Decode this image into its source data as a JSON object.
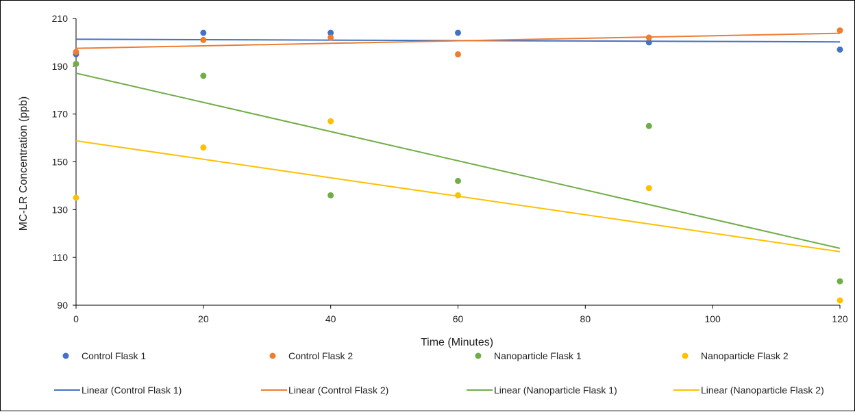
{
  "chart_data": {
    "type": "scatter",
    "title": "",
    "xlabel": "Time (Minutes)",
    "ylabel": "MC-LR Concentration (ppb)",
    "xlim": [
      0,
      120
    ],
    "ylim": [
      90,
      210
    ],
    "x_ticks": [
      "0",
      "20",
      "40",
      "60",
      "80",
      "100",
      "120"
    ],
    "y_ticks": [
      "90",
      "110",
      "130",
      "150",
      "170",
      "190",
      "210"
    ],
    "grid": false,
    "legend_position": "bottom",
    "series": [
      {
        "name": "Control Flask 1",
        "color": "#4472c4",
        "x": [
          0,
          20,
          40,
          60,
          90,
          120
        ],
        "y": [
          195,
          204,
          204,
          204,
          200,
          197
        ]
      },
      {
        "name": "Control Flask 2",
        "color": "#ed7d31",
        "x": [
          0,
          20,
          40,
          60,
          90,
          120
        ],
        "y": [
          196,
          201,
          202,
          195,
          202,
          205
        ]
      },
      {
        "name": "Nanoparticle Flask 1",
        "color": "#70ad47",
        "x": [
          0,
          20,
          40,
          60,
          90,
          120
        ],
        "y": [
          191,
          186,
          136,
          142,
          165,
          100
        ]
      },
      {
        "name": "Nanoparticle Flask 2",
        "color": "#ffc000",
        "x": [
          0,
          20,
          40,
          60,
          90,
          120
        ],
        "y": [
          135,
          156,
          167,
          136,
          139,
          92
        ]
      }
    ],
    "trendlines": [
      {
        "name": "Linear (Control Flask 1)",
        "color": "#4472c4",
        "type": "linear",
        "x": [
          0,
          120
        ],
        "y": [
          201.3,
          200.2
        ]
      },
      {
        "name": "Linear (Control Flask 2)",
        "color": "#ed7d31",
        "type": "linear",
        "x": [
          0,
          120
        ],
        "y": [
          197.5,
          203.8
        ]
      },
      {
        "name": "Linear (Nanoparticle Flask 1)",
        "color": "#70ad47",
        "type": "linear",
        "x": [
          0,
          120
        ],
        "y": [
          187.1,
          113.8
        ]
      },
      {
        "name": "Linear (Nanoparticle Flask 2)",
        "color": "#ffc000",
        "type": "linear",
        "x": [
          0,
          120
        ],
        "y": [
          158.8,
          112.4
        ]
      }
    ]
  }
}
